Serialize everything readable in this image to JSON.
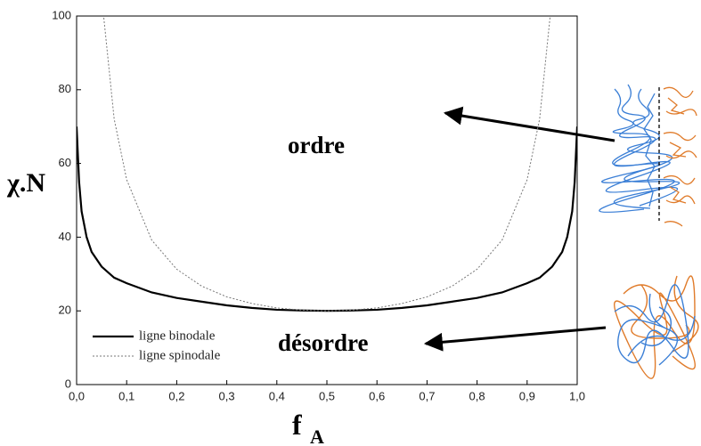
{
  "chart_data": {
    "type": "line",
    "ylabel": "χ.N",
    "xlabel_main": "f",
    "xlabel_sub": "A",
    "annotations": [
      "ordre",
      "désordre"
    ],
    "x": [
      0,
      0.005,
      0.01,
      0.02,
      0.03,
      0.05,
      0.075,
      0.1,
      0.15,
      0.2,
      0.25,
      0.3,
      0.35,
      0.4,
      0.45,
      0.5,
      0.55,
      0.6,
      0.65,
      0.7,
      0.75,
      0.8,
      0.85,
      0.9,
      0.925,
      0.95,
      0.97,
      0.98,
      0.99,
      0.995,
      1
    ],
    "series": [
      {
        "name": "ligne binodale",
        "color": "#000000",
        "dash": "solid",
        "values": [
          70,
          55,
          47,
          40,
          36,
          32,
          29,
          27.5,
          25,
          23.5,
          22.5,
          21.5,
          20.8,
          20.3,
          20.1,
          20,
          20.1,
          20.3,
          20.8,
          21.5,
          22.5,
          23.5,
          25,
          27.5,
          29,
          32,
          36,
          40,
          47,
          55,
          70
        ]
      },
      {
        "name": "ligne spinodale",
        "color": "#777777",
        "dash": "dotted",
        "values": [
          null,
          null,
          null,
          null,
          null,
          105.3,
          72.1,
          55.6,
          39.2,
          31.3,
          26.7,
          23.8,
          22.0,
          20.8,
          20.2,
          20,
          20.2,
          20.8,
          22.0,
          23.8,
          26.7,
          31.3,
          39.2,
          55.6,
          72.1,
          105.3,
          null,
          null,
          null,
          null,
          null
        ]
      }
    ],
    "xlim": [
      0,
      1
    ],
    "ylim": [
      0,
      100
    ],
    "xticks": [
      {
        "value": 0,
        "label": "0,0"
      },
      {
        "value": 0.1,
        "label": "0,1"
      },
      {
        "value": 0.2,
        "label": "0,2"
      },
      {
        "value": 0.3,
        "label": "0,3"
      },
      {
        "value": 0.4,
        "label": "0,4"
      },
      {
        "value": 0.5,
        "label": "0,5"
      },
      {
        "value": 0.6,
        "label": "0,6"
      },
      {
        "value": 0.7,
        "label": "0,7"
      },
      {
        "value": 0.8,
        "label": "0,8"
      },
      {
        "value": 0.9,
        "label": "0,9"
      },
      {
        "value": 1,
        "label": "1,0"
      }
    ],
    "yticks": [
      0,
      20,
      40,
      60,
      80,
      100
    ],
    "grid": false,
    "legend": "lower left"
  }
}
